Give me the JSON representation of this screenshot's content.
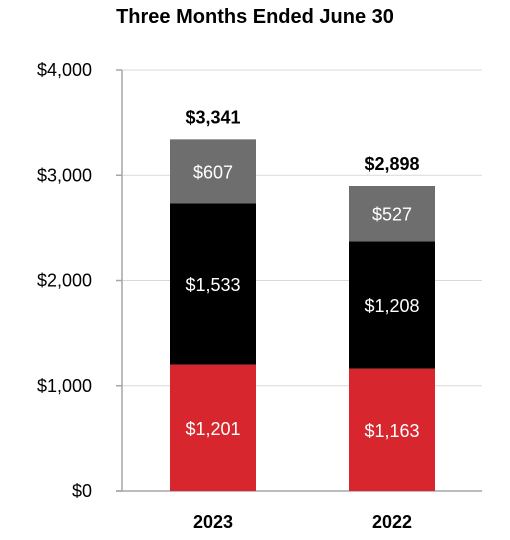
{
  "chart_data": {
    "type": "bar",
    "stacked": true,
    "title": "Three Months Ended June 30",
    "categories": [
      "2023",
      "2022"
    ],
    "series": [
      {
        "values": [
          1201,
          1163
        ],
        "labels": [
          "$1,201",
          "$1,163"
        ],
        "color": "#d7262e"
      },
      {
        "values": [
          1533,
          1208
        ],
        "labels": [
          "$1,533",
          "$1,208"
        ],
        "color": "#000000"
      },
      {
        "values": [
          607,
          527
        ],
        "labels": [
          "$607",
          "$527"
        ],
        "color": "#6e6e6e"
      }
    ],
    "totals": [
      3341,
      2898
    ],
    "total_labels": [
      "$3,341",
      "$2,898"
    ],
    "ylim": [
      0,
      4000
    ],
    "y_ticks": [
      0,
      1000,
      2000,
      3000,
      4000
    ],
    "y_tick_labels": [
      "$0",
      "$1,000",
      "$2,000",
      "$3,000",
      "$4,000"
    ],
    "grid": true,
    "grid_color": "#d9d9d9",
    "axis_color": "#a6a6a6"
  }
}
